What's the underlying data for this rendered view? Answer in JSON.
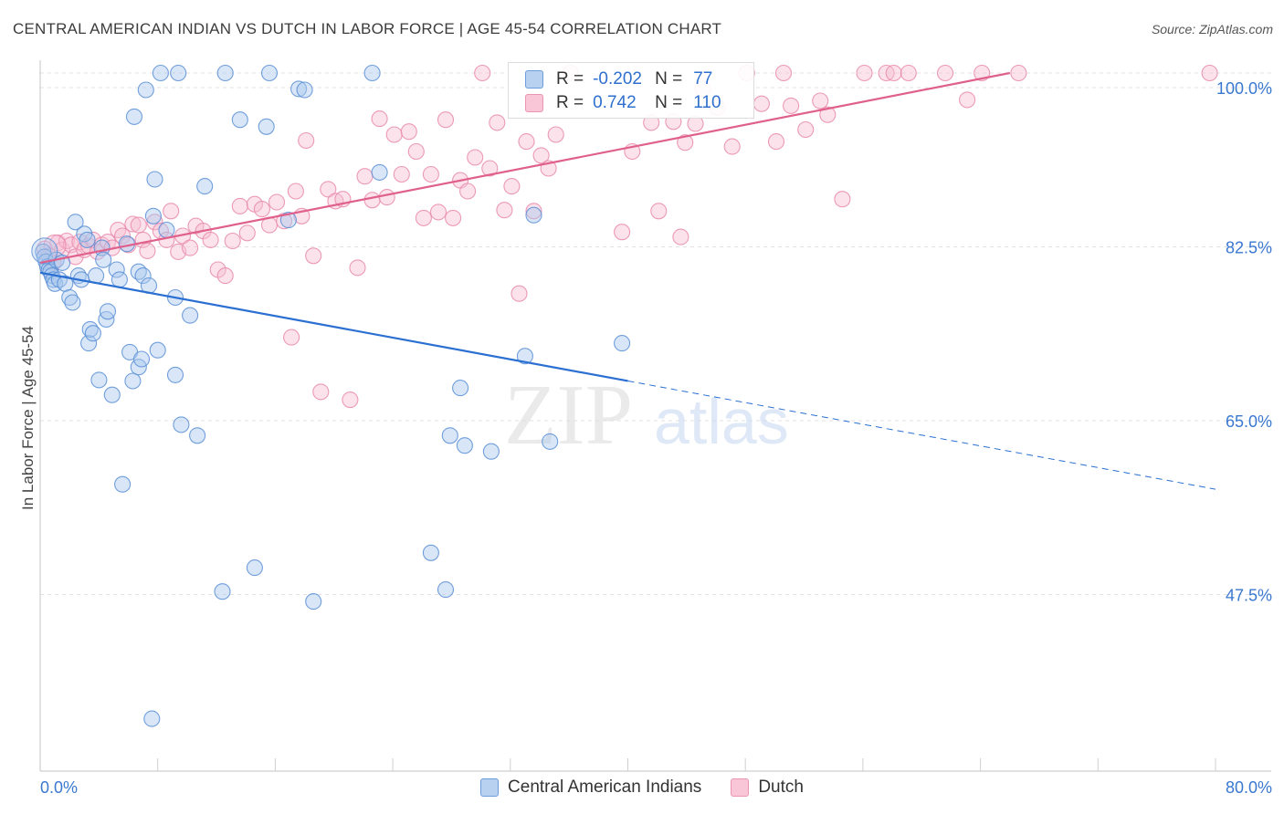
{
  "header": {
    "title": "CENTRAL AMERICAN INDIAN VS DUTCH IN LABOR FORCE | AGE 45-54 CORRELATION CHART",
    "source": "Source: ZipAtlas.com"
  },
  "watermark": {
    "zip": "ZIP",
    "atlas": "atlas"
  },
  "stats_legend": {
    "rows": [
      {
        "r_label": "R =",
        "r_value": "-0.202",
        "n_label": "N =",
        "n_value": "77"
      },
      {
        "r_label": "R =",
        "r_value": "0.742",
        "n_label": "N =",
        "n_value": "110"
      }
    ]
  },
  "colors": {
    "blue_fill": "#a9c7ee",
    "blue_stroke": "#5b8fd6",
    "blue_line": "#2a6fd1",
    "pink_fill": "#f7bfd2",
    "pink_stroke": "#e98aab",
    "pink_line": "#e0608c",
    "grid": "#e2e2e2",
    "tick_label": "#3a78d0"
  },
  "chart_data": {
    "type": "scatter",
    "title": "CENTRAL AMERICAN INDIAN VS DUTCH IN LABOR FORCE | AGE 45-54 CORRELATION CHART",
    "xlabel": "",
    "ylabel": "In Labor Force | Age 45-54",
    "xlim": [
      0,
      80
    ],
    "ylim": [
      33,
      101
    ],
    "x_tick_labels": [
      "0.0%",
      "80.0%"
    ],
    "y_ticks": [
      47.5,
      65.0,
      82.5,
      100.0
    ],
    "y_tick_labels": [
      "47.5%",
      "65.0%",
      "82.5%",
      "100.0%"
    ],
    "grid": true,
    "legend_position": "bottom",
    "series": [
      {
        "name": "Central American Indians",
        "color": "#5b8fd6",
        "trend": {
          "x": [
            0,
            40
          ],
          "y": [
            79.9,
            69.0
          ],
          "dashed_to": [
            80,
            58.1
          ]
        },
        "points": [
          [
            0.2,
            82.0
          ],
          [
            0.3,
            81.5
          ],
          [
            0.4,
            81.0
          ],
          [
            0.5,
            80.5
          ],
          [
            0.6,
            80.2
          ],
          [
            0.7,
            80.0
          ],
          [
            0.8,
            79.6
          ],
          [
            0.9,
            79.2
          ],
          [
            1.0,
            78.8
          ],
          [
            1.1,
            81.2
          ],
          [
            1.3,
            79.2
          ],
          [
            1.5,
            80.9
          ],
          [
            1.7,
            78.8
          ],
          [
            2.0,
            77.4
          ],
          [
            2.2,
            76.9
          ],
          [
            2.4,
            85.0
          ],
          [
            2.6,
            79.6
          ],
          [
            2.8,
            79.2
          ],
          [
            3.0,
            83.8
          ],
          [
            3.2,
            83.2
          ],
          [
            3.3,
            72.8
          ],
          [
            3.4,
            74.2
          ],
          [
            3.6,
            73.8
          ],
          [
            3.8,
            79.6
          ],
          [
            4.0,
            69.1
          ],
          [
            4.2,
            82.4
          ],
          [
            4.3,
            81.2
          ],
          [
            4.5,
            75.2
          ],
          [
            4.6,
            76.0
          ],
          [
            4.9,
            67.6
          ],
          [
            5.2,
            80.2
          ],
          [
            5.4,
            79.2
          ],
          [
            5.6,
            58.6
          ],
          [
            5.9,
            82.8
          ],
          [
            6.1,
            71.9
          ],
          [
            6.3,
            69.0
          ],
          [
            6.4,
            95.6
          ],
          [
            6.7,
            80.0
          ],
          [
            6.7,
            70.4
          ],
          [
            6.9,
            71.2
          ],
          [
            7.0,
            79.6
          ],
          [
            7.2,
            98.3
          ],
          [
            7.4,
            78.6
          ],
          [
            7.6,
            35.0
          ],
          [
            7.7,
            85.6
          ],
          [
            7.8,
            89.3
          ],
          [
            8.0,
            72.1
          ],
          [
            8.2,
            100.0
          ],
          [
            8.6,
            84.2
          ],
          [
            9.2,
            69.6
          ],
          [
            9.2,
            77.4
          ],
          [
            9.4,
            100.0
          ],
          [
            9.6,
            64.6
          ],
          [
            10.2,
            75.6
          ],
          [
            10.7,
            63.5
          ],
          [
            11.2,
            88.6
          ],
          [
            12.4,
            47.8
          ],
          [
            12.6,
            100.0
          ],
          [
            13.6,
            95.3
          ],
          [
            14.6,
            50.2
          ],
          [
            15.4,
            94.6
          ],
          [
            15.6,
            100.0
          ],
          [
            16.9,
            85.2
          ],
          [
            17.6,
            98.4
          ],
          [
            18.0,
            98.3
          ],
          [
            18.6,
            46.8
          ],
          [
            22.6,
            100.0
          ],
          [
            23.1,
            90.0
          ],
          [
            26.6,
            51.7
          ],
          [
            27.6,
            48.0
          ],
          [
            27.9,
            63.5
          ],
          [
            28.6,
            68.3
          ],
          [
            28.9,
            62.5
          ],
          [
            30.7,
            61.9
          ],
          [
            33.0,
            71.5
          ],
          [
            33.6,
            85.7
          ],
          [
            34.7,
            62.9
          ],
          [
            39.6,
            72.8
          ]
        ]
      },
      {
        "name": "Dutch",
        "color": "#e98aab",
        "trend": {
          "x": [
            0,
            66
          ],
          "y": [
            80.9,
            100.0
          ]
        },
        "points": [
          [
            0.3,
            82.3
          ],
          [
            0.6,
            81.6
          ],
          [
            0.9,
            80.9
          ],
          [
            1.2,
            82.9
          ],
          [
            1.5,
            82.2
          ],
          [
            1.8,
            83.1
          ],
          [
            2.1,
            82.7
          ],
          [
            2.4,
            81.5
          ],
          [
            2.7,
            83.0
          ],
          [
            3.0,
            82.2
          ],
          [
            3.3,
            82.6
          ],
          [
            3.6,
            83.2
          ],
          [
            3.9,
            82.0
          ],
          [
            4.2,
            82.7
          ],
          [
            4.6,
            83.0
          ],
          [
            4.9,
            82.4
          ],
          [
            5.3,
            84.2
          ],
          [
            5.6,
            83.6
          ],
          [
            6.0,
            82.7
          ],
          [
            6.3,
            84.8
          ],
          [
            6.7,
            84.7
          ],
          [
            7.0,
            83.2
          ],
          [
            7.3,
            82.1
          ],
          [
            7.8,
            85.0
          ],
          [
            8.2,
            84.1
          ],
          [
            8.6,
            83.2
          ],
          [
            8.9,
            86.1
          ],
          [
            9.4,
            82.0
          ],
          [
            9.7,
            83.6
          ],
          [
            10.2,
            82.4
          ],
          [
            10.6,
            84.6
          ],
          [
            11.1,
            84.1
          ],
          [
            11.6,
            83.2
          ],
          [
            12.1,
            80.2
          ],
          [
            12.6,
            79.6
          ],
          [
            13.1,
            83.1
          ],
          [
            13.6,
            86.6
          ],
          [
            14.1,
            83.9
          ],
          [
            14.6,
            86.8
          ],
          [
            15.1,
            86.3
          ],
          [
            15.6,
            84.7
          ],
          [
            16.1,
            87.0
          ],
          [
            16.6,
            85.1
          ],
          [
            17.1,
            73.4
          ],
          [
            17.4,
            88.1
          ],
          [
            17.8,
            85.6
          ],
          [
            18.1,
            93.2
          ],
          [
            18.6,
            81.6
          ],
          [
            19.1,
            67.9
          ],
          [
            19.6,
            88.3
          ],
          [
            20.1,
            87.1
          ],
          [
            20.6,
            87.3
          ],
          [
            21.1,
            67.1
          ],
          [
            21.6,
            80.4
          ],
          [
            22.1,
            89.6
          ],
          [
            22.6,
            87.2
          ],
          [
            23.1,
            95.4
          ],
          [
            23.6,
            87.5
          ],
          [
            24.1,
            93.8
          ],
          [
            24.6,
            89.8
          ],
          [
            25.1,
            94.1
          ],
          [
            25.6,
            92.1
          ],
          [
            26.1,
            85.4
          ],
          [
            26.6,
            89.8
          ],
          [
            27.1,
            86.0
          ],
          [
            27.6,
            95.3
          ],
          [
            28.1,
            85.4
          ],
          [
            28.6,
            89.2
          ],
          [
            29.1,
            88.1
          ],
          [
            29.6,
            91.5
          ],
          [
            30.1,
            100.0
          ],
          [
            30.6,
            90.4
          ],
          [
            31.1,
            95.0
          ],
          [
            31.6,
            86.2
          ],
          [
            32.1,
            88.6
          ],
          [
            32.6,
            77.8
          ],
          [
            33.1,
            93.1
          ],
          [
            33.6,
            86.1
          ],
          [
            34.1,
            91.7
          ],
          [
            34.6,
            90.4
          ],
          [
            35.1,
            93.8
          ],
          [
            36.1,
            100.0
          ],
          [
            39.6,
            84.0
          ],
          [
            40.3,
            92.1
          ],
          [
            41.6,
            95.0
          ],
          [
            42.1,
            86.1
          ],
          [
            43.1,
            95.1
          ],
          [
            43.6,
            83.5
          ],
          [
            43.9,
            93.0
          ],
          [
            44.6,
            94.9
          ],
          [
            45.1,
            98.4
          ],
          [
            46.1,
            96.5
          ],
          [
            47.1,
            92.6
          ],
          [
            48.1,
            100.0
          ],
          [
            49.1,
            96.9
          ],
          [
            50.1,
            93.1
          ],
          [
            50.6,
            100.0
          ],
          [
            51.1,
            96.7
          ],
          [
            52.1,
            94.3
          ],
          [
            53.1,
            97.2
          ],
          [
            53.6,
            95.8
          ],
          [
            54.6,
            87.3
          ],
          [
            56.1,
            100.0
          ],
          [
            57.6,
            100.0
          ],
          [
            58.1,
            100.0
          ],
          [
            59.1,
            100.0
          ],
          [
            61.6,
            100.0
          ],
          [
            63.1,
            97.3
          ],
          [
            64.1,
            100.0
          ],
          [
            66.6,
            100.0
          ],
          [
            79.6,
            100.0
          ]
        ]
      }
    ]
  }
}
